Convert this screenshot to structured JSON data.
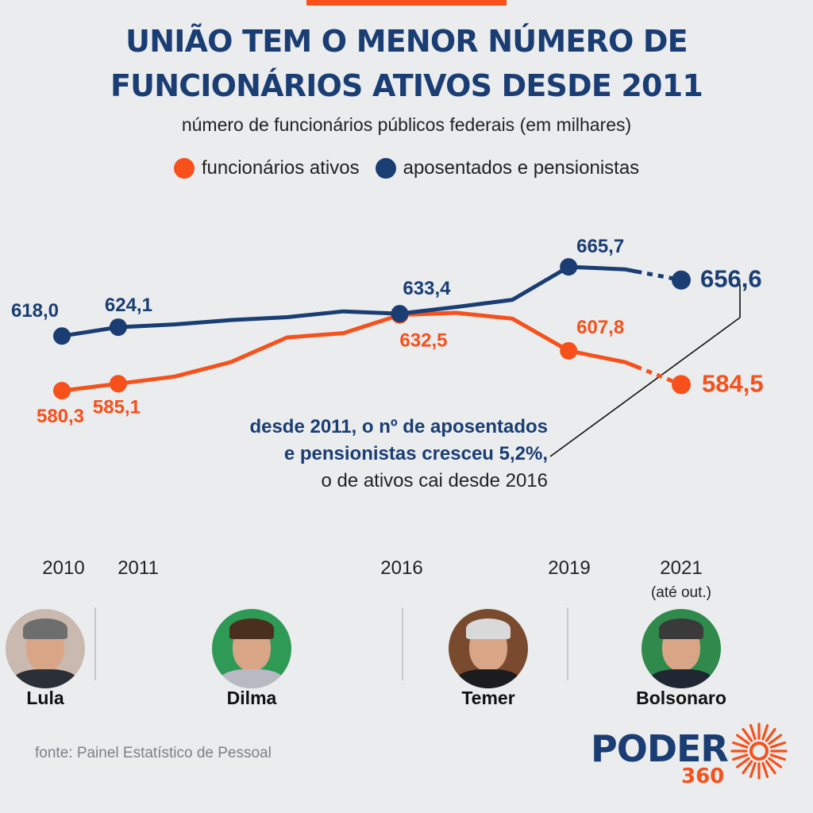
{
  "header": {
    "title_line1": "UNIÃO TEM O MENOR NÚMERO DE",
    "title_line2": "FUNCIONÁRIOS ATIVOS DESDE 2011",
    "subtitle": "número de funcionários públicos federais (em milhares)"
  },
  "colors": {
    "active": "#f7501a",
    "retired": "#1a3d73",
    "background": "#eaecee"
  },
  "chart_data": {
    "type": "line",
    "title": "UNIÃO TEM O MENOR NÚMERO DE FUNCIONÁRIOS ATIVOS DESDE 2011",
    "subtitle": "número de funcionários públicos federais (em milhares)",
    "x": [
      2010,
      2011,
      2012,
      2013,
      2014,
      2015,
      2016,
      2017,
      2018,
      2019,
      2020,
      2021
    ],
    "x_tick_labels": [
      "2010",
      "2011",
      "2016",
      "2019",
      "2021"
    ],
    "x_tick_values": [
      2010,
      2011,
      2016,
      2019,
      2021
    ],
    "series": [
      {
        "name": "funcionários ativos",
        "color": "#f7501a",
        "values": [
          580.3,
          585.1,
          590.0,
          600.0,
          617.0,
          620.0,
          632.5,
          634.0,
          630.0,
          607.8,
          600.0,
          584.5
        ],
        "labels": [
          {
            "x": 2010,
            "text": "580,3"
          },
          {
            "x": 2011,
            "text": "585,1"
          },
          {
            "x": 2016,
            "text": "632,5"
          },
          {
            "x": 2019,
            "text": "607,8"
          },
          {
            "x": 2021,
            "text": "584,5"
          }
        ]
      },
      {
        "name": "aposentados e pensionistas",
        "color": "#1a3d73",
        "values": [
          618.0,
          624.1,
          626.0,
          629.0,
          631.0,
          635.0,
          633.4,
          638.0,
          643.0,
          665.7,
          664.0,
          656.6
        ],
        "labels": [
          {
            "x": 2010,
            "text": "618,0"
          },
          {
            "x": 2011,
            "text": "624,1"
          },
          {
            "x": 2016,
            "text": "633,4"
          },
          {
            "x": 2019,
            "text": "665,7"
          },
          {
            "x": 2021,
            "text": "656,6"
          }
        ]
      }
    ],
    "markers_at": [
      2010,
      2011,
      2016,
      2019,
      2021
    ],
    "dashed_from_x": 2020.2,
    "ylim": [
      565,
      680
    ],
    "grid": false,
    "legend": "top-center",
    "annotation": {
      "strong": "desde 2011, o nº de aposentados e pensionistas cresceu 5,2%,",
      "rest": "o de ativos cai desde 2016"
    }
  },
  "timeline": {
    "years": [
      {
        "label": "2010"
      },
      {
        "label": "2011"
      },
      {
        "label": "2016"
      },
      {
        "label": "2019"
      },
      {
        "label": "2021",
        "note": "(até out.)"
      }
    ],
    "presidents": [
      "Lula",
      "Dilma",
      "Temer",
      "Bolsonaro"
    ]
  },
  "footer": {
    "source": "fonte: Painel Estatístico de Pessoal",
    "logo_text": "PODER",
    "logo_number": "360"
  }
}
